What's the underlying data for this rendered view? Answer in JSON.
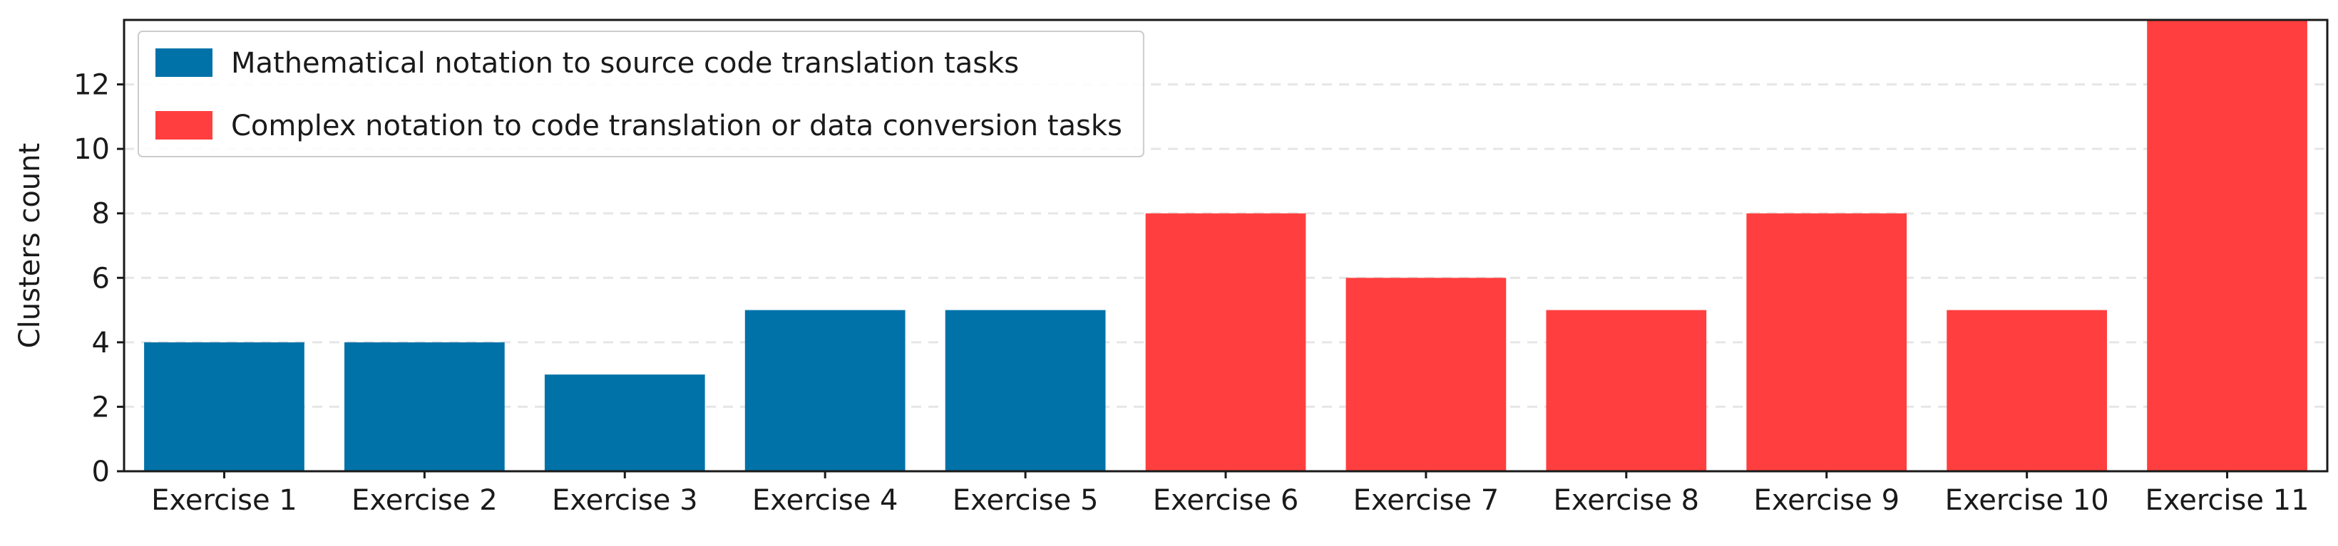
{
  "chart_data": {
    "type": "bar",
    "title": "",
    "xlabel": "",
    "ylabel": "Clusters count",
    "ylim": [
      0,
      14
    ],
    "yticks": [
      0,
      2,
      4,
      6,
      8,
      10,
      12
    ],
    "grid": {
      "y": true,
      "style": "dashed",
      "color": "#e6e6e6"
    },
    "legend": {
      "placement": "top-left",
      "entries": [
        {
          "label": "Mathematical notation to source code translation tasks",
          "color": "#0072a8"
        },
        {
          "label": "Complex notation to code translation or data conversion tasks",
          "color": "#ff3f3f"
        }
      ]
    },
    "categories": [
      "Exercise 1",
      "Exercise 2",
      "Exercise 3",
      "Exercise 4",
      "Exercise 5",
      "Exercise 6",
      "Exercise 7",
      "Exercise 8",
      "Exercise 9",
      "Exercise 10",
      "Exercise 11"
    ],
    "values": [
      4,
      4,
      3,
      5,
      5,
      8,
      6,
      5,
      8,
      5,
      14
    ],
    "groups": [
      0,
      0,
      0,
      0,
      0,
      1,
      1,
      1,
      1,
      1,
      1
    ]
  }
}
